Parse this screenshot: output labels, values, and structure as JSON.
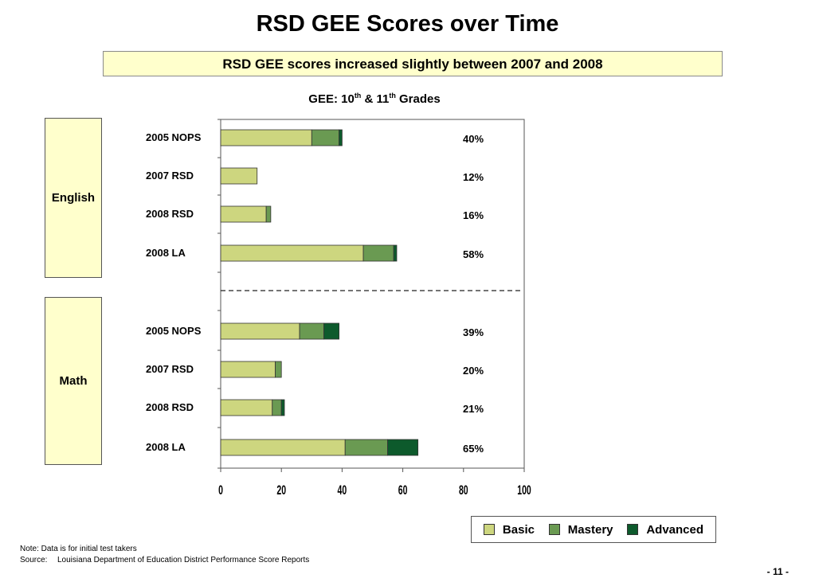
{
  "page": {
    "title": "RSD GEE Scores over Time",
    "banner": "RSD GEE scores increased slightly between 2007 and 2008",
    "note": "Note: Data is for initial test takers",
    "source_label": "Source:",
    "source_text": "Louisiana Department of Education District Performance Score Reports",
    "page_number": "- 11 -"
  },
  "chart_data": {
    "type": "bar",
    "orientation": "horizontal",
    "stacked": true,
    "title": {
      "prefix": "GEE: 10",
      "sup1": "th",
      "mid": " & 11",
      "sup2": "th",
      "suffix": " Grades"
    },
    "xlim": [
      0,
      100
    ],
    "xticks": [
      0,
      20,
      40,
      60,
      80,
      100
    ],
    "colors": {
      "Basic": "#cdd67f",
      "Mastery": "#6a9a52",
      "Advanced": "#0d5a2c"
    },
    "legend": {
      "position": "bottom-right",
      "items": [
        "Basic",
        "Mastery",
        "Advanced"
      ]
    },
    "groups": [
      {
        "name": "English",
        "bars": [
          {
            "label": "2005 NOPS",
            "basic": 30,
            "mastery": 9,
            "advanced": 1,
            "total_label": "40%"
          },
          {
            "label": "2007 RSD",
            "basic": 12,
            "mastery": 0,
            "advanced": 0,
            "total_label": "12%"
          },
          {
            "label": "2008 RSD",
            "basic": 15,
            "mastery": 1.5,
            "advanced": 0,
            "total_label": "16%"
          },
          {
            "label": "2008 LA",
            "basic": 47,
            "mastery": 10,
            "advanced": 1,
            "total_label": "58%"
          }
        ]
      },
      {
        "name": "Math",
        "bars": [
          {
            "label": "2005 NOPS",
            "basic": 26,
            "mastery": 8,
            "advanced": 5,
            "total_label": "39%"
          },
          {
            "label": "2007 RSD",
            "basic": 18,
            "mastery": 2,
            "advanced": 0,
            "total_label": "20%"
          },
          {
            "label": "2008 RSD",
            "basic": 17,
            "mastery": 3,
            "advanced": 1,
            "total_label": "21%"
          },
          {
            "label": "2008 LA",
            "basic": 41,
            "mastery": 14,
            "advanced": 10,
            "total_label": "65%"
          }
        ]
      }
    ]
  }
}
